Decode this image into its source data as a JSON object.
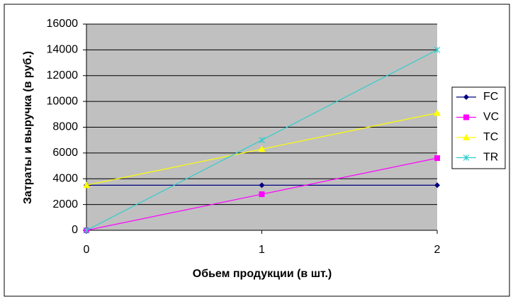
{
  "chart_data": {
    "type": "line",
    "x_label": "Обьем продукции (в шт.)",
    "y_label": "Затраты и выручка (в руб.)",
    "x": [
      0,
      1,
      2
    ],
    "xlim": [
      0,
      2
    ],
    "xticks": [
      0,
      1,
      2
    ],
    "ylim": [
      0,
      16000
    ],
    "yticks": [
      0,
      2000,
      4000,
      6000,
      8000,
      10000,
      12000,
      14000,
      16000
    ],
    "grid": true,
    "legend": "right",
    "series": [
      {
        "name": "FC",
        "color": "#000080",
        "marker": "diamond",
        "values": [
          3500,
          3500,
          3500
        ]
      },
      {
        "name": "VC",
        "color": "#ff00ff",
        "marker": "square",
        "values": [
          0,
          2800,
          5600
        ]
      },
      {
        "name": "TC",
        "color": "#ffff00",
        "marker": "triangle",
        "values": [
          3500,
          6300,
          9100
        ]
      },
      {
        "name": "TR",
        "color": "#33cccc",
        "marker": "x",
        "values": [
          0,
          7000,
          14000
        ]
      }
    ]
  }
}
